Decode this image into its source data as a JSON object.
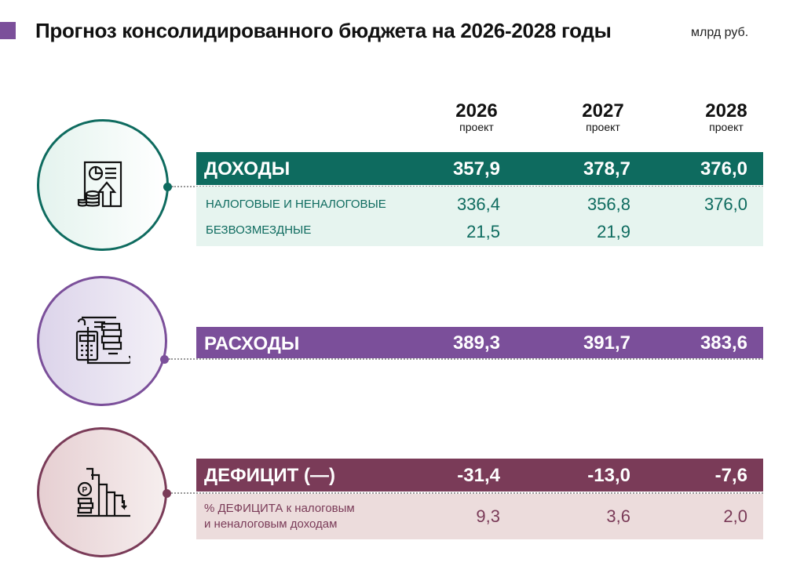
{
  "header": {
    "title": "Прогноз консолидированного бюджета на 2026-2028 годы",
    "unit": "млрд руб."
  },
  "years": [
    {
      "year": "2026",
      "note": "проект"
    },
    {
      "year": "2027",
      "note": "проект"
    },
    {
      "year": "2028",
      "note": "проект"
    }
  ],
  "income": {
    "label": "ДОХОДЫ",
    "values": [
      "357,9",
      "378,7",
      "376,0"
    ],
    "rows": [
      {
        "label": "НАЛОГОВЫЕ И НЕНАЛОГОВЫЕ",
        "values": [
          "336,4",
          "356,8",
          "376,0"
        ]
      },
      {
        "label": "БЕЗВОЗМЕЗДНЫЕ",
        "values": [
          "21,5",
          "21,9",
          ""
        ]
      }
    ]
  },
  "expenses": {
    "label": "РАСХОДЫ",
    "values": [
      "389,3",
      "391,7",
      "383,6"
    ]
  },
  "deficit": {
    "label": "ДЕФИЦИТ (—)",
    "values": [
      "-31,4",
      "-13,0",
      "-7,6"
    ],
    "rows": [
      {
        "label_line1": "% ДЕФИЦИТА к налоговым",
        "label_line2": "и неналоговым доходам",
        "values": [
          "9,3",
          "3,6",
          "2,0"
        ]
      }
    ]
  },
  "colors": {
    "teal": "#0e6b5f",
    "purple": "#7b4f9a",
    "maroon": "#7a3b58"
  }
}
